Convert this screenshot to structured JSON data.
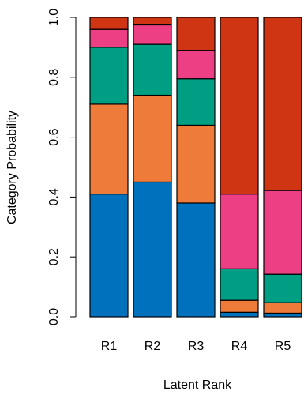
{
  "chart_data": {
    "type": "bar",
    "stacked": true,
    "title": "",
    "xlabel": "Latent Rank",
    "ylabel": "Category Probability",
    "ylim": [
      0,
      1
    ],
    "yticks": [
      "0.0",
      "0.2",
      "0.4",
      "0.6",
      "0.8",
      "1.0"
    ],
    "yticks_rotated": true,
    "grid": false,
    "legend": "none",
    "categories": [
      "R1",
      "R2",
      "R3",
      "R4",
      "R5"
    ],
    "series": [
      {
        "color": "#0072BD",
        "values": [
          0.41,
          0.45,
          0.38,
          0.015,
          0.012
        ]
      },
      {
        "color": "#EE7B3A",
        "values": [
          0.3,
          0.29,
          0.26,
          0.04,
          0.035
        ]
      },
      {
        "color": "#009E82",
        "values": [
          0.19,
          0.17,
          0.155,
          0.105,
          0.095
        ]
      },
      {
        "color": "#EC3F84",
        "values": [
          0.06,
          0.065,
          0.095,
          0.25,
          0.28
        ]
      },
      {
        "color": "#CF3512",
        "values": [
          0.04,
          0.025,
          0.11,
          0.59,
          0.578
        ]
      }
    ]
  }
}
